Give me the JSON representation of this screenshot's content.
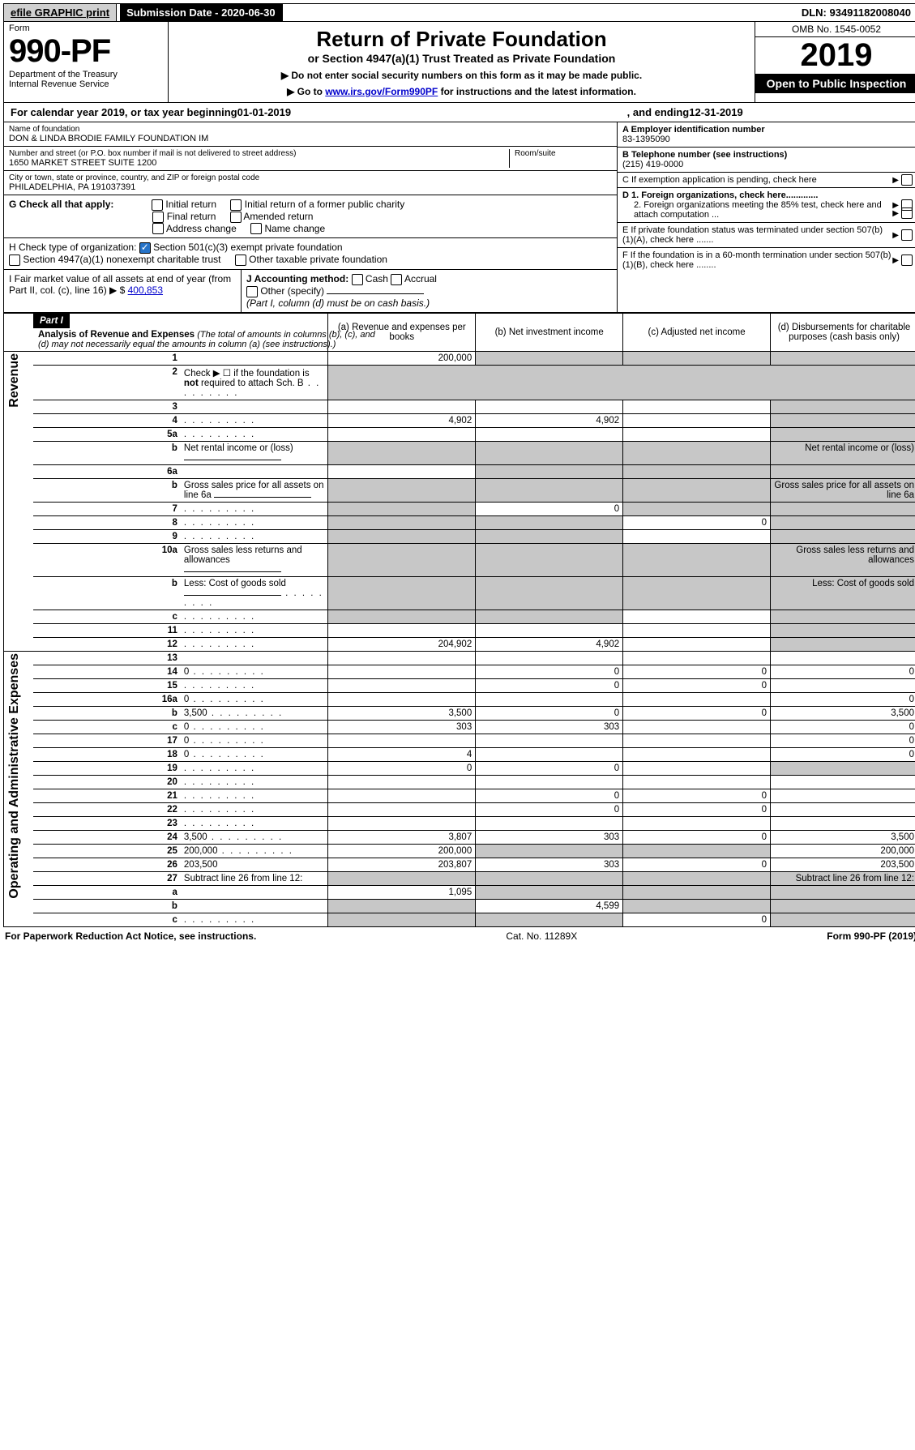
{
  "topbar": {
    "efile": "efile GRAPHIC print",
    "submission": "Submission Date - 2020-06-30",
    "dln": "DLN: 93491182008040"
  },
  "header": {
    "form_label": "Form",
    "form_no": "990-PF",
    "dept": "Department of the Treasury",
    "irs": "Internal Revenue Service",
    "title": "Return of Private Foundation",
    "subtitle": "or Section 4947(a)(1) Trust Treated as Private Foundation",
    "note1": "▶ Do not enter social security numbers on this form as it may be made public.",
    "note2_pre": "▶ Go to ",
    "note2_link": "www.irs.gov/Form990PF",
    "note2_post": " for instructions and the latest information.",
    "omb": "OMB No. 1545-0052",
    "year": "2019",
    "open": "Open to Public Inspection"
  },
  "calendar": {
    "label_a": "For calendar year 2019, or tax year beginning ",
    "begin": "01-01-2019",
    "label_b": ", and ending ",
    "end": "12-31-2019"
  },
  "entity": {
    "name_label": "Name of foundation",
    "name": "DON & LINDA BRODIE FAMILY FOUNDATION IM",
    "addr_label": "Number and street (or P.O. box number if mail is not delivered to street address)",
    "addr": "1650 MARKET STREET SUITE 1200",
    "room_label": "Room/suite",
    "city_label": "City or town, state or province, country, and ZIP or foreign postal code",
    "city": "PHILADELPHIA, PA  191037391",
    "ein_label": "A Employer identification number",
    "ein": "83-1395090",
    "phone_label": "B Telephone number (see instructions)",
    "phone": "(215) 419-0000",
    "c_label": "C If exemption application is pending, check here",
    "d1": "D 1. Foreign organizations, check here.............",
    "d2": "2. Foreign organizations meeting the 85% test, check here and attach computation ...",
    "e_label": "E   If private foundation status was terminated under section 507(b)(1)(A), check here .......",
    "f_label": "F   If the foundation is in a 60-month termination under section 507(b)(1)(B), check here ........"
  },
  "g": {
    "label": "G Check all that apply:",
    "opts": [
      "Initial return",
      "Initial return of a former public charity",
      "Final return",
      "Amended return",
      "Address change",
      "Name change"
    ]
  },
  "h": {
    "label": "H Check type of organization:",
    "opt1": "Section 501(c)(3) exempt private foundation",
    "opt2": "Section 4947(a)(1) nonexempt charitable trust",
    "opt3": "Other taxable private foundation"
  },
  "i": {
    "label": "I Fair market value of all assets at end of year (from Part II, col. (c), line 16) ▶ $",
    "value": "400,853"
  },
  "j": {
    "label": "J Accounting method:",
    "cash": "Cash",
    "accrual": "Accrual",
    "other": "Other (specify)",
    "note": "(Part I, column (d) must be on cash basis.)"
  },
  "part1": {
    "title": "Part I",
    "heading": "Analysis of Revenue and Expenses",
    "sub": "(The total of amounts in columns (b), (c), and (d) may not necessarily equal the amounts in column (a) (see instructions).)",
    "cols": {
      "a": "(a)   Revenue and expenses per books",
      "b": "(b)   Net investment income",
      "c": "(c)   Adjusted net income",
      "d": "(d)   Disbursements for charitable purposes (cash basis only)"
    }
  },
  "sides": {
    "rev": "Revenue",
    "exp": "Operating and Administrative Expenses"
  },
  "rows": [
    {
      "n": "1",
      "d": "",
      "a": "200,000",
      "b": "",
      "c": "",
      "gb": true,
      "gc": true,
      "gd": true
    },
    {
      "n": "2",
      "d": "Check ▶ ☐ if the foundation is <b>not</b> required to attach Sch. B",
      "dots": true,
      "noval": true
    },
    {
      "n": "3",
      "d": "",
      "a": "",
      "b": "",
      "c": "",
      "gd": true
    },
    {
      "n": "4",
      "d": "",
      "dots": true,
      "a": "4,902",
      "b": "4,902",
      "c": "",
      "gd": true
    },
    {
      "n": "5a",
      "d": "",
      "dots": true,
      "a": "",
      "b": "",
      "c": "",
      "gd": true
    },
    {
      "n": "b",
      "d": "Net rental income or (loss)",
      "uline": true,
      "ga": true,
      "gb": true,
      "gc": true,
      "gd": true
    },
    {
      "n": "6a",
      "d": "",
      "a": "",
      "b": "",
      "c": "",
      "gb": true,
      "gc": true,
      "gd": true
    },
    {
      "n": "b",
      "d": "Gross sales price for all assets on line 6a",
      "uline": true,
      "ga": true,
      "gb": true,
      "gc": true,
      "gd": true
    },
    {
      "n": "7",
      "d": "",
      "dots": true,
      "a": "",
      "b": "0",
      "c": "",
      "ga": true,
      "gc": true,
      "gd": true
    },
    {
      "n": "8",
      "d": "",
      "dots": true,
      "a": "",
      "b": "",
      "c": "0",
      "ga": true,
      "gb": true,
      "gd": true
    },
    {
      "n": "9",
      "d": "",
      "dots": true,
      "a": "",
      "b": "",
      "c": "",
      "ga": true,
      "gb": true,
      "gd": true
    },
    {
      "n": "10a",
      "d": "Gross sales less returns and allowances",
      "uline": true,
      "ga": true,
      "gb": true,
      "gc": true,
      "gd": true
    },
    {
      "n": "b",
      "d": "Less: Cost of goods sold",
      "dots": true,
      "uline": true,
      "ga": true,
      "gb": true,
      "gc": true,
      "gd": true
    },
    {
      "n": "c",
      "d": "",
      "dots": true,
      "a": "",
      "b": "",
      "c": "",
      "ga": true,
      "gb": true,
      "gd": true
    },
    {
      "n": "11",
      "d": "",
      "dots": true,
      "a": "",
      "b": "",
      "c": "",
      "gd": true
    },
    {
      "n": "12",
      "d": "",
      "dots": true,
      "a": "204,902",
      "b": "4,902",
      "c": "",
      "gd": true
    },
    {
      "n": "13",
      "d": "",
      "a": "",
      "b": "",
      "c": ""
    },
    {
      "n": "14",
      "d": "0",
      "dots": true,
      "a": "",
      "b": "0",
      "c": "0"
    },
    {
      "n": "15",
      "d": "",
      "dots": true,
      "a": "",
      "b": "0",
      "c": "0"
    },
    {
      "n": "16a",
      "d": "0",
      "dots": true,
      "a": "",
      "b": "",
      "c": ""
    },
    {
      "n": "b",
      "d": "3,500",
      "dots": true,
      "a": "3,500",
      "b": "0",
      "c": "0"
    },
    {
      "n": "c",
      "d": "0",
      "dots": true,
      "a": "303",
      "b": "303",
      "c": ""
    },
    {
      "n": "17",
      "d": "0",
      "dots": true,
      "a": "",
      "b": "",
      "c": ""
    },
    {
      "n": "18",
      "d": "0",
      "dots": true,
      "a": "4",
      "b": "",
      "c": ""
    },
    {
      "n": "19",
      "d": "",
      "dots": true,
      "a": "0",
      "b": "0",
      "c": "",
      "gd": true
    },
    {
      "n": "20",
      "d": "",
      "dots": true,
      "a": "",
      "b": "",
      "c": ""
    },
    {
      "n": "21",
      "d": "",
      "dots": true,
      "a": "",
      "b": "0",
      "c": "0"
    },
    {
      "n": "22",
      "d": "",
      "dots": true,
      "a": "",
      "b": "0",
      "c": "0"
    },
    {
      "n": "23",
      "d": "",
      "dots": true,
      "a": "",
      "b": "",
      "c": ""
    },
    {
      "n": "24",
      "d": "3,500",
      "dots": true,
      "a": "3,807",
      "b": "303",
      "c": "0"
    },
    {
      "n": "25",
      "d": "200,000",
      "dots": true,
      "a": "200,000",
      "b": "",
      "c": "",
      "gb": true,
      "gc": true
    },
    {
      "n": "26",
      "d": "203,500",
      "a": "203,807",
      "b": "303",
      "c": "0"
    },
    {
      "n": "27",
      "d": "Subtract line 26 from line 12:",
      "ga": true,
      "gb": true,
      "gc": true,
      "gd": true
    },
    {
      "n": "a",
      "d": "",
      "a": "1,095",
      "b": "",
      "c": "",
      "gb": true,
      "gc": true,
      "gd": true
    },
    {
      "n": "b",
      "d": "",
      "a": "",
      "b": "4,599",
      "c": "",
      "ga": true,
      "gc": true,
      "gd": true
    },
    {
      "n": "c",
      "d": "",
      "dots": true,
      "a": "",
      "b": "",
      "c": "0",
      "ga": true,
      "gb": true,
      "gd": true
    }
  ],
  "footer": {
    "left": "For Paperwork Reduction Act Notice, see instructions.",
    "mid": "Cat. No. 11289X",
    "right": "Form 990-PF (2019)"
  }
}
